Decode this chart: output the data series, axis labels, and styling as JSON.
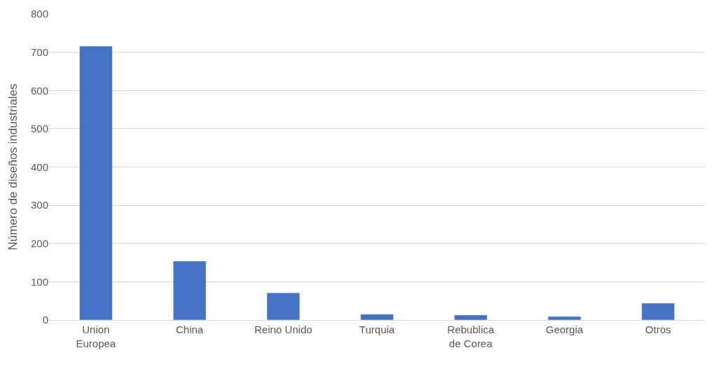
{
  "chart_data": {
    "type": "bar",
    "ylabel": "Número de diseños industriales",
    "categories": [
      "Union Europea",
      "China",
      "Reino Unido",
      "Turquia",
      "Rebublica de Corea",
      "Georgia",
      "Otros"
    ],
    "values": [
      716,
      154,
      71,
      15,
      13,
      9,
      44
    ],
    "color": "#4472c4",
    "ylim": [
      0,
      800
    ],
    "yticks": [
      0,
      100,
      200,
      300,
      400,
      500,
      600,
      700,
      800
    ],
    "grid": "y",
    "legend": false
  }
}
